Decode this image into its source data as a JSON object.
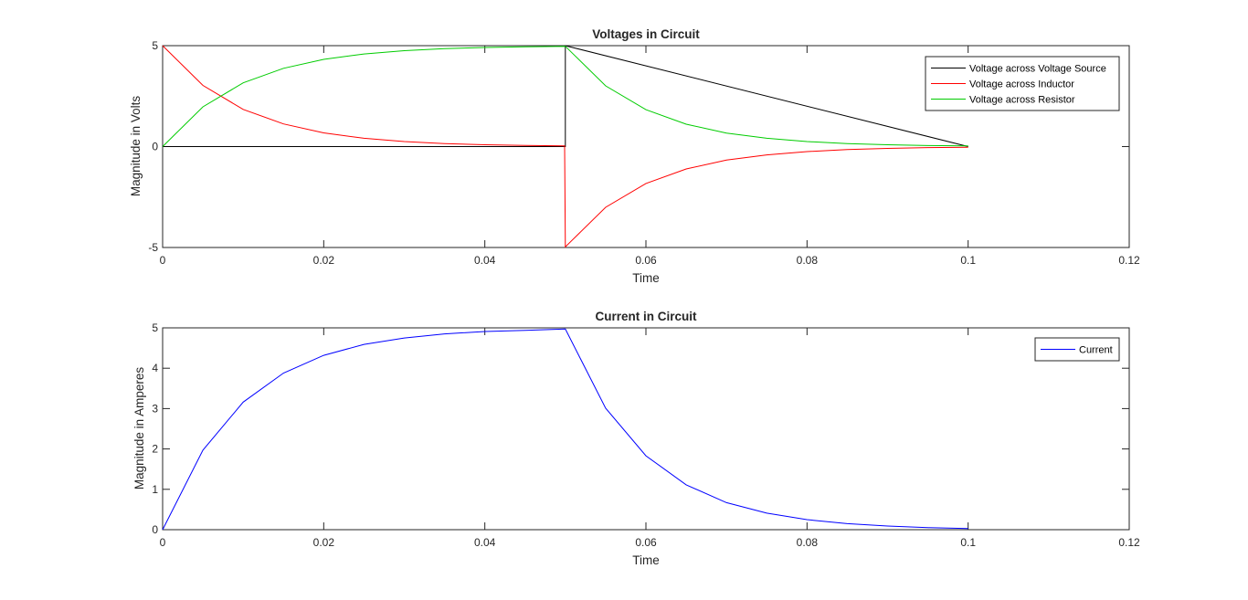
{
  "chart_data": [
    {
      "type": "line",
      "title": "Voltages in Circuit",
      "xlabel": "Time",
      "ylabel": "Magnitude in Volts",
      "xlim": [
        0,
        0.12
      ],
      "ylim": [
        -5,
        5
      ],
      "xticks": [
        0,
        0.02,
        0.04,
        0.06,
        0.08,
        0.1,
        0.12
      ],
      "xtick_labels": [
        "0",
        "0.02",
        "0.04",
        "0.06",
        "0.08",
        "0.1",
        "0.12"
      ],
      "yticks": [
        -5,
        0,
        5
      ],
      "ytick_labels": [
        "-5",
        "0",
        "5"
      ],
      "legend_position": "top-right",
      "grid": false,
      "series": [
        {
          "name": "Voltage across Voltage Source",
          "color": "#000000",
          "x": [
            0,
            0.0499,
            0.05,
            0.05,
            0.1
          ],
          "y": [
            0,
            0,
            0,
            5,
            0
          ]
        },
        {
          "name": "Voltage across Inductor",
          "color": "#ff0000",
          "x": [
            0,
            0.005,
            0.01,
            0.015,
            0.02,
            0.025,
            0.03,
            0.035,
            0.04,
            0.045,
            0.0499,
            0.05,
            0.055,
            0.06,
            0.065,
            0.07,
            0.075,
            0.08,
            0.085,
            0.09,
            0.095,
            0.1
          ],
          "y": [
            5,
            3.03,
            1.84,
            1.12,
            0.68,
            0.41,
            0.25,
            0.15,
            0.09,
            0.06,
            0.03,
            -4.97,
            -3.01,
            -1.83,
            -1.11,
            -0.67,
            -0.41,
            -0.25,
            -0.15,
            -0.09,
            -0.05,
            -0.03
          ]
        },
        {
          "name": "Voltage across Resistor",
          "color": "#00cc00",
          "x": [
            0,
            0.005,
            0.01,
            0.015,
            0.02,
            0.025,
            0.03,
            0.035,
            0.04,
            0.045,
            0.05,
            0.055,
            0.06,
            0.065,
            0.07,
            0.075,
            0.08,
            0.085,
            0.09,
            0.095,
            0.1
          ],
          "y": [
            0,
            1.97,
            3.16,
            3.88,
            4.32,
            4.59,
            4.75,
            4.85,
            4.91,
            4.94,
            4.97,
            3.01,
            1.83,
            1.11,
            0.67,
            0.41,
            0.25,
            0.15,
            0.09,
            0.05,
            0.03
          ]
        }
      ]
    },
    {
      "type": "line",
      "title": "Current in Circuit",
      "xlabel": "Time",
      "ylabel": "Magnitude in Amperes",
      "xlim": [
        0,
        0.12
      ],
      "ylim": [
        0,
        5
      ],
      "xticks": [
        0,
        0.02,
        0.04,
        0.06,
        0.08,
        0.1,
        0.12
      ],
      "xtick_labels": [
        "0",
        "0.02",
        "0.04",
        "0.06",
        "0.08",
        "0.1",
        "0.12"
      ],
      "yticks": [
        0,
        1,
        2,
        3,
        4,
        5
      ],
      "ytick_labels": [
        "0",
        "1",
        "2",
        "3",
        "4",
        "5"
      ],
      "legend_position": "top-right",
      "grid": false,
      "series": [
        {
          "name": "Current",
          "color": "#0000ff",
          "x": [
            0,
            0.005,
            0.01,
            0.015,
            0.02,
            0.025,
            0.03,
            0.035,
            0.04,
            0.045,
            0.05,
            0.055,
            0.06,
            0.065,
            0.07,
            0.075,
            0.08,
            0.085,
            0.09,
            0.095,
            0.1
          ],
          "y": [
            0,
            1.97,
            3.16,
            3.88,
            4.32,
            4.59,
            4.75,
            4.85,
            4.91,
            4.94,
            4.97,
            3.01,
            1.83,
            1.11,
            0.67,
            0.41,
            0.25,
            0.15,
            0.09,
            0.05,
            0.03
          ]
        }
      ]
    }
  ]
}
